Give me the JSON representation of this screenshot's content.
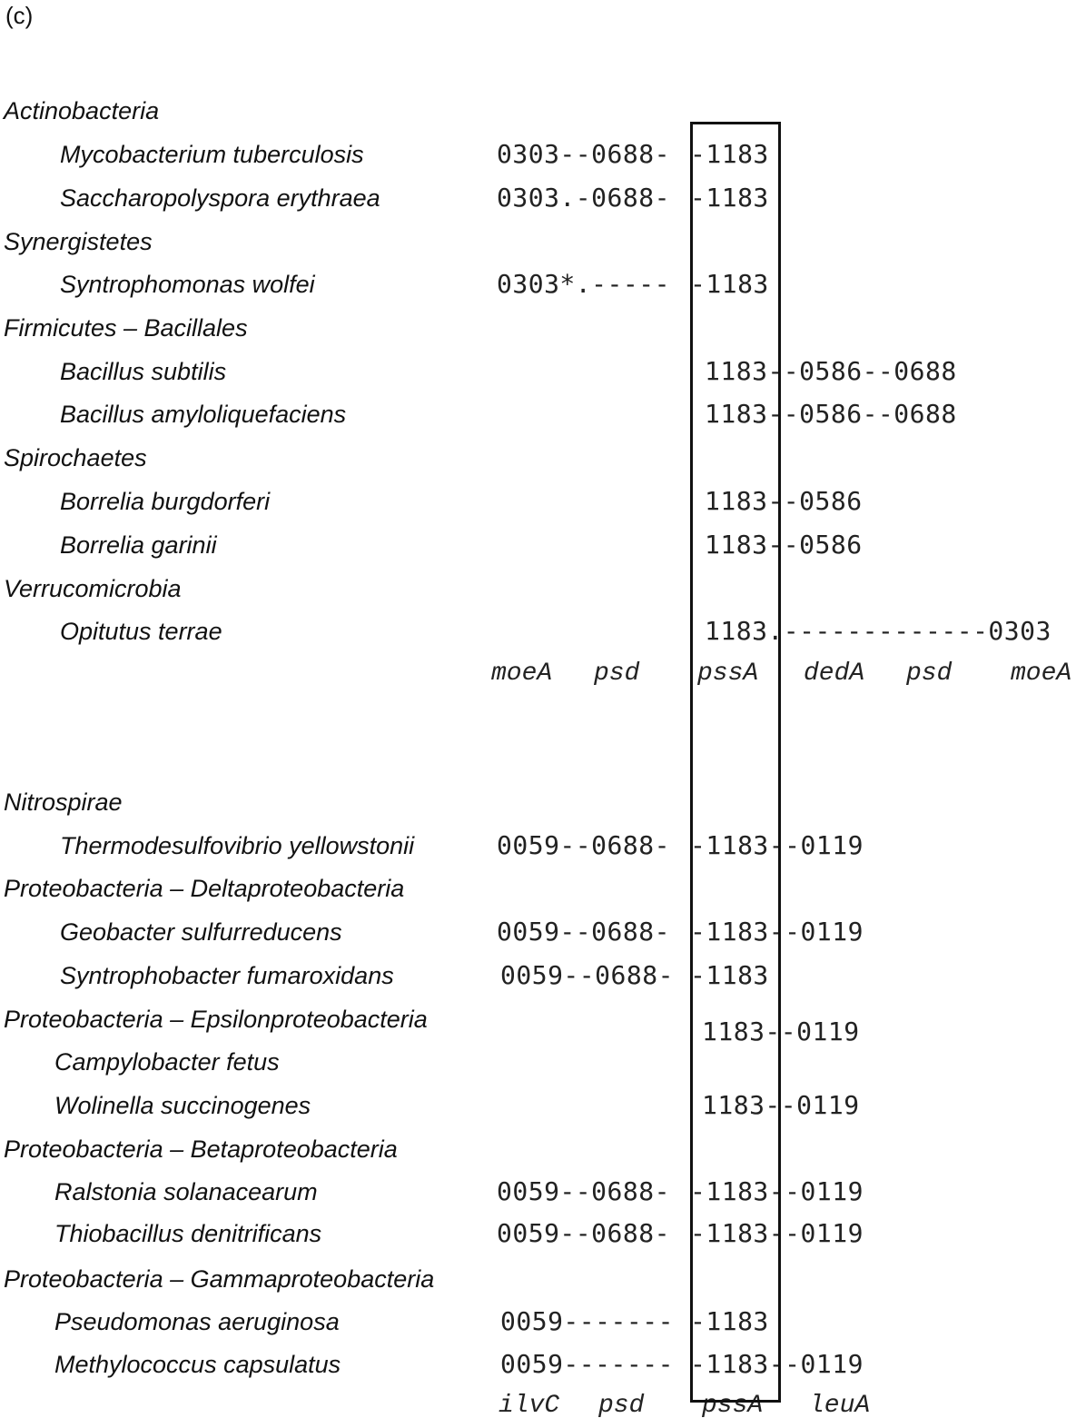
{
  "panel_label": "(c)",
  "section1": {
    "groups": [
      {
        "name": "Actinobacteria",
        "species": [
          {
            "name": "Mycobacterium tuberculosis",
            "left": "0303--0688-",
            "right": "-1183"
          },
          {
            "name": "Saccharopolyspora erythraea",
            "left": "0303.-0688-",
            "right": "-1183"
          }
        ]
      },
      {
        "name": "Synergistetes",
        "species": [
          {
            "name": "Syntrophomonas wolfei",
            "left": "0303*.-----",
            "right": "-1183"
          }
        ]
      },
      {
        "name": "Firmicutes – Bacillales",
        "species": [
          {
            "name": "Bacillus subtilis",
            "left": "",
            "right": "1183--0586--0688"
          },
          {
            "name": "Bacillus amyloliquefaciens",
            "left": "",
            "right": "1183--0586--0688"
          }
        ]
      },
      {
        "name": "Spirochaetes",
        "species": [
          {
            "name": "Borrelia burgdorferi",
            "left": "",
            "right": "1183--0586"
          },
          {
            "name": "Borrelia garinii",
            "left": "",
            "right": "1183--0586"
          }
        ]
      },
      {
        "name": "Verrucomicrobia",
        "species": [
          {
            "name": "Opitutus terrae",
            "left": "",
            "right": "1183.-------------0303"
          }
        ]
      }
    ],
    "axis_genes": [
      "moeA",
      "psd",
      "pssA",
      "dedA",
      "psd",
      "moeA"
    ]
  },
  "section2": {
    "groups": [
      {
        "name": "Nitrospirae",
        "species": [
          {
            "name": "Thermodesulfovibrio yellowstonii",
            "left": "0059--0688-",
            "right": "-1183--0119"
          }
        ]
      },
      {
        "name": "Proteobacteria – Deltaproteobacteria",
        "species": [
          {
            "name": "Geobacter sulfurreducens",
            "left": "0059--0688-",
            "right": "-1183--0119"
          },
          {
            "name": "Syntrophobacter fumaroxidans",
            "left": "0059--0688-",
            "right": "-1183"
          }
        ]
      },
      {
        "name": "Proteobacteria – Epsilonproteobacteria",
        "species": [
          {
            "name": "Campylobacter fetus",
            "left": "",
            "right": "1183--0119"
          },
          {
            "name": "Wolinella succinogenes",
            "left": "",
            "right": "1183--0119"
          }
        ]
      },
      {
        "name": "Proteobacteria – Betaproteobacteria",
        "species": [
          {
            "name": "Ralstonia solanacearum",
            "left": "0059--0688-",
            "right": "-1183--0119"
          },
          {
            "name": "Thiobacillus denitrificans",
            "left": "0059--0688-",
            "right": "-1183--0119"
          }
        ]
      },
      {
        "name": "Proteobacteria – Gammaproteobacteria",
        "species": [
          {
            "name": "Pseudomonas aeruginosa",
            "left": "0059-------",
            "right": "-1183"
          },
          {
            "name": "Methylococcus capsulatus",
            "left": "0059-------",
            "right": "-1183--0119"
          }
        ]
      }
    ],
    "axis_genes": [
      "ilvC",
      "psd",
      "pssA",
      "leuA"
    ]
  }
}
